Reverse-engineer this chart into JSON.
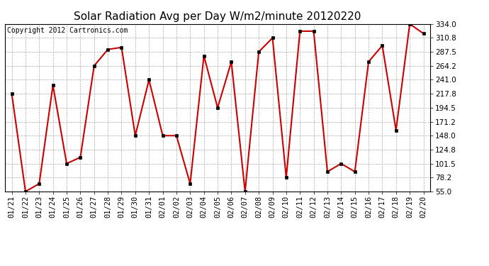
{
  "title": "Solar Radiation Avg per Day W/m2/minute 20120220",
  "copyright_text": "Copyright 2012 Cartronics.com",
  "labels": [
    "01/21",
    "01/22",
    "01/23",
    "01/24",
    "01/25",
    "01/26",
    "01/27",
    "01/28",
    "01/29",
    "01/30",
    "01/31",
    "02/01",
    "02/02",
    "02/03",
    "02/04",
    "02/05",
    "02/06",
    "02/07",
    "02/08",
    "02/09",
    "02/10",
    "02/11",
    "02/12",
    "02/13",
    "02/14",
    "02/15",
    "02/16",
    "02/17",
    "02/18",
    "02/19",
    "02/20"
  ],
  "values": [
    217.8,
    55.0,
    68.0,
    232.0,
    101.5,
    112.0,
    264.2,
    291.5,
    295.0,
    148.0,
    241.0,
    148.0,
    148.0,
    68.0,
    281.0,
    194.5,
    271.0,
    55.0,
    287.5,
    310.8,
    78.2,
    322.0,
    322.0,
    88.0,
    101.5,
    88.0,
    271.0,
    298.0,
    157.0,
    334.0,
    318.0
  ],
  "line_color": "#cc0000",
  "marker_color": "#000000",
  "bg_color": "#ffffff",
  "plot_bg_color": "#ffffff",
  "grid_color": "#aaaaaa",
  "ylim": [
    55.0,
    334.0
  ],
  "yticks": [
    55.0,
    78.2,
    101.5,
    124.8,
    148.0,
    171.2,
    194.5,
    217.8,
    241.0,
    264.2,
    287.5,
    310.8,
    334.0
  ],
  "title_fontsize": 11,
  "copyright_fontsize": 7,
  "tick_fontsize": 7.5
}
